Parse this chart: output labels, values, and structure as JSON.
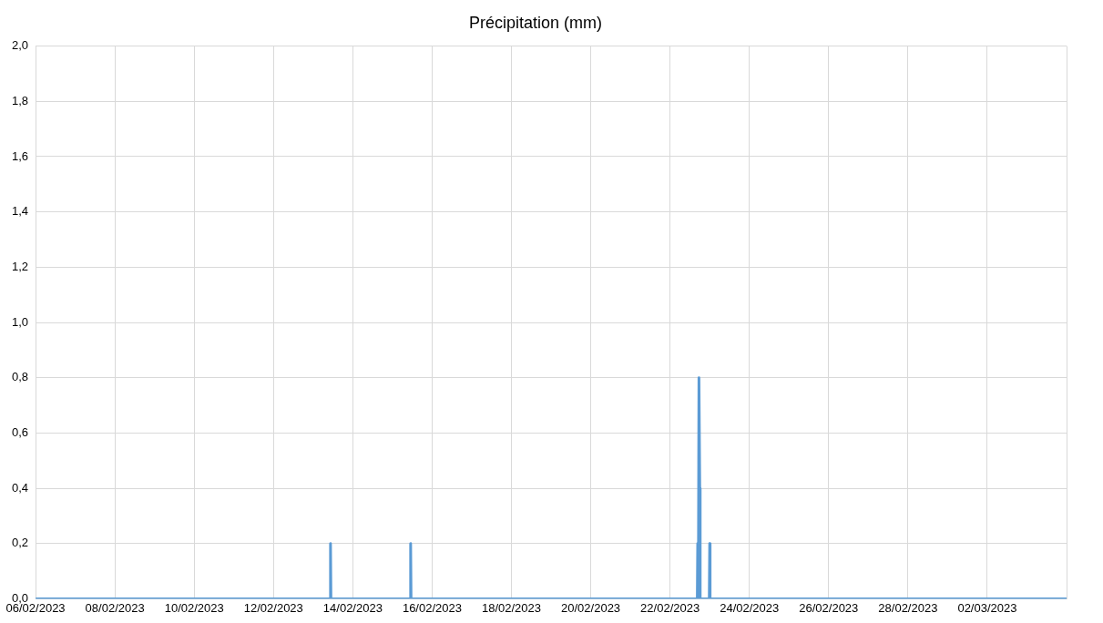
{
  "chart_data": {
    "type": "line",
    "title": "Précipitation (mm)",
    "x": [
      "2023-02-06T00:00",
      "2023-02-13T10:15",
      "2023-02-13T10:30",
      "2023-02-13T10:45",
      "2023-02-15T10:45",
      "2023-02-15T11:00",
      "2023-02-15T11:15",
      "2023-02-22T16:30",
      "2023-02-22T16:45",
      "2023-02-22T17:00",
      "2023-02-22T17:15",
      "2023-02-22T17:30",
      "2023-02-22T18:00",
      "2023-02-22T18:15",
      "2023-02-22T23:45",
      "2023-02-23T00:00",
      "2023-02-23T00:15",
      "2023-03-04T00:00"
    ],
    "series": [
      {
        "color": "#5b9bd5",
        "values": [
          0,
          0,
          0.2,
          0,
          0,
          0.2,
          0,
          0,
          0.2,
          0,
          0,
          0.8,
          0.4,
          0,
          0,
          0.2,
          0,
          0
        ]
      }
    ],
    "xlim": [
      "2023-02-06",
      "2023-03-04"
    ],
    "xticks": [
      {
        "value": "2023-02-06",
        "label": "06/02/2023"
      },
      {
        "value": "2023-02-08",
        "label": "08/02/2023"
      },
      {
        "value": "2023-02-10",
        "label": "10/02/2023"
      },
      {
        "value": "2023-02-12",
        "label": "12/02/2023"
      },
      {
        "value": "2023-02-14",
        "label": "14/02/2023"
      },
      {
        "value": "2023-02-16",
        "label": "16/02/2023"
      },
      {
        "value": "2023-02-18",
        "label": "18/02/2023"
      },
      {
        "value": "2023-02-20",
        "label": "20/02/2023"
      },
      {
        "value": "2023-02-22",
        "label": "22/02/2023"
      },
      {
        "value": "2023-02-24",
        "label": "24/02/2023"
      },
      {
        "value": "2023-02-26",
        "label": "26/02/2023"
      },
      {
        "value": "2023-02-28",
        "label": "28/02/2023"
      },
      {
        "value": "2023-03-02",
        "label": "02/03/2023"
      },
      {
        "value": "2023-03-04",
        "label": null
      }
    ],
    "ylim": [
      0,
      2
    ],
    "yticks": [
      {
        "value": 0,
        "label": "0,0"
      },
      {
        "value": 0.2,
        "label": "0,2"
      },
      {
        "value": 0.4,
        "label": "0,4"
      },
      {
        "value": 0.6,
        "label": "0,6"
      },
      {
        "value": 0.8,
        "label": "0,8"
      },
      {
        "value": 1,
        "label": "1,0"
      },
      {
        "value": 1.2,
        "label": "1,2"
      },
      {
        "value": 1.4,
        "label": "1,4"
      },
      {
        "value": 1.6,
        "label": "1,6"
      },
      {
        "value": 1.8,
        "label": "1,8"
      },
      {
        "value": 2,
        "label": "2,0"
      }
    ],
    "grid": true,
    "legend": false,
    "marker": "none",
    "line_style": "solid"
  }
}
